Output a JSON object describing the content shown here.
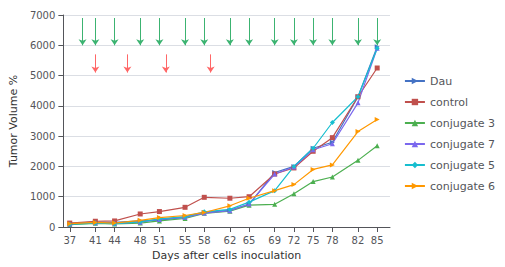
{
  "chart_data": {
    "type": "line",
    "x": [
      37,
      41,
      44,
      48,
      51,
      55,
      58,
      62,
      65,
      69,
      72,
      75,
      78,
      82,
      85
    ],
    "series": [
      {
        "name": "Dau",
        "color": "#4472C4",
        "marker": "triangle-right",
        "values": [
          120,
          160,
          150,
          200,
          230,
          320,
          480,
          550,
          750,
          1800,
          2000,
          2600,
          2800,
          4300,
          5950
        ]
      },
      {
        "name": "control",
        "color": "#C0504D",
        "marker": "square",
        "values": [
          130,
          190,
          200,
          430,
          510,
          650,
          980,
          950,
          1000,
          1750,
          1950,
          2500,
          2950,
          4300,
          5250
        ]
      },
      {
        "name": "conjugate 3",
        "color": "#4CAF50",
        "marker": "triangle-up",
        "values": [
          80,
          120,
          100,
          130,
          200,
          280,
          450,
          520,
          720,
          750,
          1100,
          1500,
          1650,
          2200,
          2680
        ]
      },
      {
        "name": "conjugate 7",
        "color": "#7B68EE",
        "marker": "triangle-up",
        "values": [
          100,
          140,
          120,
          160,
          250,
          320,
          460,
          540,
          760,
          1750,
          1980,
          2550,
          2750,
          4100,
          5900
        ]
      },
      {
        "name": "conjugate 5",
        "color": "#17BECF",
        "marker": "diamond",
        "values": [
          90,
          130,
          110,
          170,
          270,
          340,
          500,
          580,
          820,
          1200,
          2000,
          2600,
          3450,
          4300,
          5900
        ]
      },
      {
        "name": "conjugate 6",
        "color": "#FF9800",
        "marker": "triangle-right",
        "values": [
          110,
          150,
          130,
          220,
          310,
          380,
          480,
          700,
          950,
          1200,
          1400,
          1900,
          2050,
          3150,
          3550
        ]
      }
    ],
    "arrows": [
      {
        "x": [
          39,
          41,
          44,
          48,
          51,
          55,
          58,
          62,
          65,
          69,
          72,
          75,
          78,
          82,
          85
        ],
        "from": 6900,
        "to": 6000,
        "color": "#3CB371"
      },
      {
        "x": [
          41,
          46,
          52,
          59
        ],
        "from": 5700,
        "to": 5100,
        "color": "#FF6666"
      }
    ],
    "xlabel": "Days after cells inoculation",
    "ylabel": "Tumor Volume %",
    "xlim": [
      36,
      87
    ],
    "xticks": [
      37,
      41,
      44,
      48,
      51,
      55,
      58,
      62,
      65,
      69,
      72,
      75,
      78,
      82,
      85
    ],
    "ylim": [
      0,
      7000
    ],
    "yticks": [
      0,
      1000,
      2000,
      3000,
      4000,
      5000,
      6000,
      7000
    ],
    "grid": "y",
    "legend": "right"
  }
}
